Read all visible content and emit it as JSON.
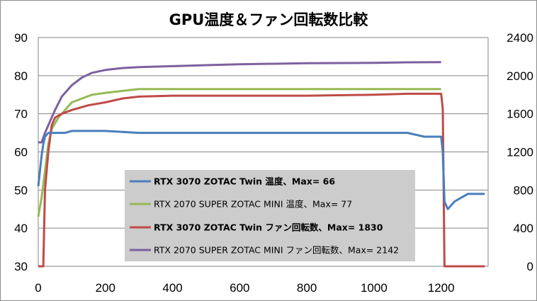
{
  "chart_data": {
    "type": "line",
    "title": "GPU温度＆ファン回転数比較",
    "xlabel": "",
    "ylabel": "",
    "y2label": "",
    "xlim": [
      0,
      1340
    ],
    "ylim": [
      30,
      90
    ],
    "y2lim": [
      0,
      2400
    ],
    "x_ticks": [
      "0",
      "200",
      "400",
      "600",
      "800",
      "1000",
      "1200"
    ],
    "y_ticks": [
      "30",
      "40",
      "50",
      "60",
      "70",
      "80",
      "90"
    ],
    "y2_ticks": [
      "0",
      "400",
      "800",
      "1200",
      "1600",
      "2000",
      "2400"
    ],
    "grid": "horizontal",
    "legend_position": "center",
    "series": [
      {
        "name": "RTX 3070 ZOTAC Twin 温度、Max= 66",
        "axis": "left",
        "color": "#4a7ebb",
        "bold": true,
        "points": [
          [
            0,
            51
          ],
          [
            5,
            55
          ],
          [
            10,
            59
          ],
          [
            15,
            62
          ],
          [
            20,
            64
          ],
          [
            25,
            64.5
          ],
          [
            30,
            65
          ],
          [
            50,
            65
          ],
          [
            80,
            65
          ],
          [
            100,
            65.5
          ],
          [
            200,
            65.5
          ],
          [
            300,
            65
          ],
          [
            400,
            65
          ],
          [
            500,
            65
          ],
          [
            600,
            65
          ],
          [
            700,
            65
          ],
          [
            800,
            65
          ],
          [
            900,
            65
          ],
          [
            1000,
            65
          ],
          [
            1100,
            65
          ],
          [
            1150,
            64
          ],
          [
            1200,
            64
          ],
          [
            1205,
            60
          ],
          [
            1210,
            47
          ],
          [
            1220,
            45
          ],
          [
            1240,
            47
          ],
          [
            1260,
            48
          ],
          [
            1280,
            49
          ],
          [
            1300,
            49
          ],
          [
            1330,
            49
          ]
        ]
      },
      {
        "name": "RTX 2070 SUPER ZOTAC MINI 温度、Max= 77",
        "axis": "left",
        "color": "#98b954",
        "bold": false,
        "points": [
          [
            0,
            43
          ],
          [
            10,
            48
          ],
          [
            20,
            55
          ],
          [
            30,
            62
          ],
          [
            40,
            66
          ],
          [
            60,
            69
          ],
          [
            80,
            71
          ],
          [
            100,
            73
          ],
          [
            130,
            74
          ],
          [
            160,
            75
          ],
          [
            200,
            75.5
          ],
          [
            250,
            76
          ],
          [
            300,
            76.5
          ],
          [
            400,
            76.5
          ],
          [
            600,
            76.5
          ],
          [
            800,
            76.5
          ],
          [
            1000,
            76.5
          ],
          [
            1100,
            76.5
          ],
          [
            1200,
            76.5
          ]
        ]
      },
      {
        "name": "RTX 3070 ZOTAC Twin ファン回転数、Max= 1830",
        "axis": "right",
        "color": "#be4b48",
        "bold": true,
        "points": [
          [
            0,
            0
          ],
          [
            15,
            0
          ],
          [
            20,
            800
          ],
          [
            30,
            1200
          ],
          [
            40,
            1480
          ],
          [
            50,
            1560
          ],
          [
            70,
            1600
          ],
          [
            100,
            1640
          ],
          [
            150,
            1690
          ],
          [
            200,
            1720
          ],
          [
            250,
            1760
          ],
          [
            300,
            1780
          ],
          [
            400,
            1790
          ],
          [
            600,
            1790
          ],
          [
            800,
            1790
          ],
          [
            1000,
            1800
          ],
          [
            1100,
            1810
          ],
          [
            1200,
            1810
          ],
          [
            1205,
            1650
          ],
          [
            1210,
            0
          ],
          [
            1330,
            0
          ]
        ]
      },
      {
        "name": "RTX 2070 SUPER ZOTAC MINI ファン回転数、Max= 2142",
        "axis": "right",
        "color": "#7d60a0",
        "bold": false,
        "points": [
          [
            0,
            1300
          ],
          [
            10,
            1300
          ],
          [
            20,
            1400
          ],
          [
            30,
            1480
          ],
          [
            50,
            1640
          ],
          [
            70,
            1780
          ],
          [
            100,
            1900
          ],
          [
            130,
            1980
          ],
          [
            160,
            2030
          ],
          [
            200,
            2060
          ],
          [
            250,
            2080
          ],
          [
            300,
            2090
          ],
          [
            400,
            2100
          ],
          [
            500,
            2110
          ],
          [
            600,
            2120
          ],
          [
            800,
            2130
          ],
          [
            1000,
            2135
          ],
          [
            1100,
            2140
          ],
          [
            1200,
            2142
          ]
        ]
      }
    ]
  }
}
